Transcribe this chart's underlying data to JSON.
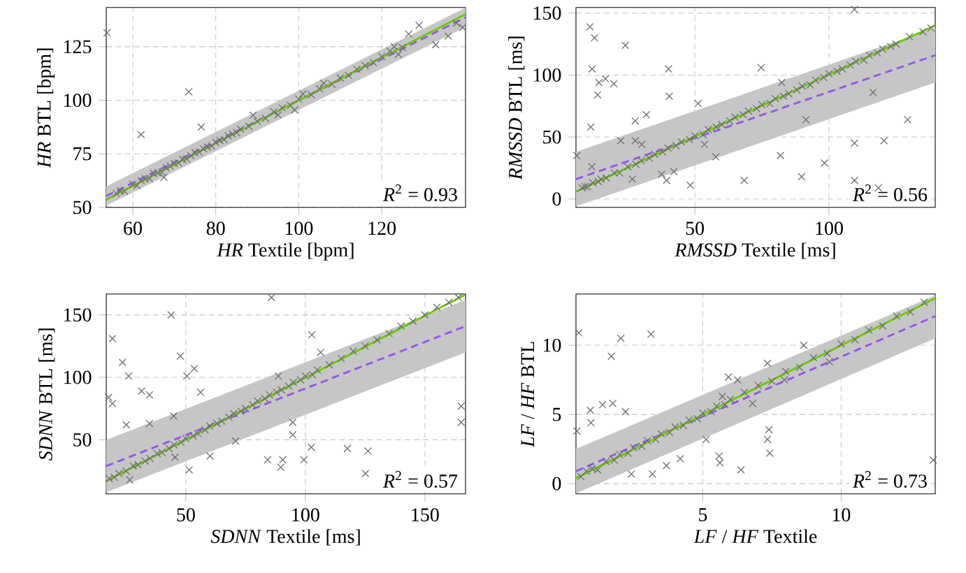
{
  "chart_data": [
    {
      "type": "scatter",
      "xlabel": "*HR* Textile [bpm]",
      "ylabel": "*HR* BTL [bpm]",
      "xlim": [
        53.6,
        140.2
      ],
      "ylim": [
        50,
        143.3
      ],
      "xticks": [
        60,
        80,
        100,
        120
      ],
      "yticks": [
        50,
        75,
        100,
        125
      ],
      "grid": true,
      "annotations": [
        "*R*$^{2}$ = 0.93"
      ],
      "series": [
        {
          "type": "line",
          "color": "#9955ee",
          "line_style": "dashed",
          "marker": "none",
          "x": [
            53.6,
            140.2
          ],
          "values": [
            55.3,
            138.7
          ],
          "lower": [
            50.8,
            134.2
          ],
          "upper": [
            59.8,
            143.2
          ]
        },
        {
          "type": "scatter",
          "color": "#707070",
          "marker": "cross",
          "x": [
            56,
            57,
            58,
            60,
            61,
            62,
            63,
            64,
            65,
            66,
            67,
            68,
            69,
            70,
            71,
            72,
            73,
            74,
            75,
            76,
            77,
            78,
            79,
            80,
            81,
            82,
            83,
            84,
            85,
            86,
            88,
            89,
            90,
            92,
            94,
            95,
            96,
            98,
            99,
            100,
            101,
            103,
            105,
            106,
            108,
            110,
            112,
            114,
            116,
            118,
            120,
            122,
            123,
            124,
            125,
            53.8,
            62,
            73.5,
            76.5,
            67.5,
            129,
            126.5,
            133,
            136,
            138,
            139.5
          ],
          "values": [
            56.5,
            57.8,
            57.5,
            60.8,
            60.2,
            62.5,
            63.4,
            63.5,
            65.9,
            66.2,
            66.5,
            68.6,
            69.3,
            70.5,
            70.8,
            72.4,
            72.6,
            74.2,
            75.6,
            75.8,
            77.4,
            78.1,
            78.7,
            80.3,
            81.2,
            81.7,
            83.4,
            84.2,
            84.9,
            86.5,
            87.8,
            93,
            90.2,
            91.6,
            94.6,
            93.2,
            96.5,
            97.6,
            95.5,
            100.5,
            103,
            102.6,
            105.4,
            108,
            107.5,
            110.4,
            111.6,
            114.5,
            116.2,
            117.6,
            120.4,
            123,
            125,
            121.5,
            124.6,
            131.5,
            84,
            104,
            87.5,
            64,
            135,
            131,
            126,
            130,
            136,
            134
          ]
        },
        {
          "type": "line",
          "color": "#66cc00",
          "line_style": "solid",
          "marker": "none",
          "x": [
            53.6,
            140.2
          ],
          "values": [
            53.6,
            140.2
          ]
        }
      ]
    },
    {
      "type": "scatter",
      "xlabel": "*RMSSD* Textile [ms]",
      "ylabel": "*RMSSD* BTL [ms]",
      "xlim": [
        5.7,
        139.6
      ],
      "ylim": [
        -6.8,
        154.5
      ],
      "xticks": [
        50,
        100
      ],
      "yticks": [
        0,
        50,
        100,
        150
      ],
      "grid": true,
      "annotations": [
        "*R*$^{2}$ = 0.56"
      ],
      "series": [
        {
          "type": "line",
          "color": "#9955ee",
          "line_style": "dashed",
          "marker": "none",
          "x": [
            5.7,
            139.6
          ],
          "values": [
            16,
            116
          ],
          "lower": [
            -6,
            94
          ],
          "upper": [
            38,
            138
          ]
        },
        {
          "type": "scatter",
          "color": "#707070",
          "marker": "cross",
          "x": [
            8,
            9,
            10,
            12,
            14,
            15,
            17,
            20,
            22,
            25,
            28,
            30,
            33,
            35,
            38,
            40,
            43,
            45,
            48,
            50,
            53,
            55,
            58,
            60,
            63,
            65,
            68,
            70,
            73,
            75,
            78,
            80,
            83,
            85,
            88,
            90,
            93,
            95,
            98,
            100,
            103,
            105,
            108,
            110,
            113,
            115,
            118,
            120,
            123,
            125,
            130,
            135,
            138,
            10.9,
            12.6,
            11.7,
            14.3,
            16.7,
            19.8,
            13.8,
            11.2,
            24.1,
            40.2,
            40.5,
            31.9,
            27.8,
            22.4,
            27.8,
            30.2,
            74.7,
            51.2,
            82.4,
            91.4,
            116.4,
            109.5,
            120.5,
            129.3,
            109.5,
            81.9,
            98.3,
            89.8,
            68.4,
            48.3,
            109.5,
            118.4,
            57.8,
            53.6,
            11.6,
            6,
            37.6,
            42.2,
            26.7,
            39.5
          ],
          "values": [
            9,
            10,
            10,
            13,
            14,
            16,
            17,
            21,
            21,
            26,
            28,
            31,
            33,
            36,
            38,
            41,
            43,
            46,
            48,
            51,
            52,
            56,
            58,
            60,
            63,
            66,
            68,
            71,
            73,
            76,
            77,
            81,
            83,
            85,
            88,
            91,
            92,
            96,
            98,
            101,
            103,
            105,
            108,
            111,
            112,
            116,
            118,
            121,
            123,
            125,
            131,
            135,
            138,
            139,
            130,
            105,
            94,
            97,
            93,
            84,
            58,
            124,
            105,
            83,
            68,
            63,
            47,
            47,
            44,
            106,
            77,
            94,
            64,
            86,
            45,
            47,
            64,
            153,
            35,
            29,
            18,
            15,
            11,
            15,
            9,
            34,
            44,
            26,
            35,
            20,
            22,
            16,
            15
          ]
        },
        {
          "type": "line",
          "color": "#66cc00",
          "line_style": "solid",
          "marker": "none",
          "x": [
            5.7,
            139.6
          ],
          "values": [
            6,
            140
          ]
        }
      ]
    },
    {
      "type": "scatter",
      "xlabel": "*SDNN* Textile [ms]",
      "ylabel": "*SDNN* BTL [ms]",
      "xlim": [
        16.7,
        167
      ],
      "ylim": [
        6.7,
        166.7
      ],
      "xticks": [
        50,
        100,
        150
      ],
      "yticks": [
        50,
        100,
        150
      ],
      "grid": true,
      "annotations": [
        "*R*$^{2}$ = 0.57"
      ],
      "series": [
        {
          "type": "line",
          "color": "#9955ee",
          "line_style": "dashed",
          "marker": "none",
          "x": [
            16.7,
            167
          ],
          "values": [
            29,
            141
          ],
          "lower": [
            8,
            120
          ],
          "upper": [
            50,
            162
          ]
        },
        {
          "type": "scatter",
          "color": "#707070",
          "marker": "cross",
          "x": [
            18,
            20,
            22,
            25,
            28,
            30,
            33,
            35,
            38,
            40,
            43,
            45,
            48,
            50,
            53,
            55,
            58,
            60,
            63,
            65,
            68,
            70,
            73,
            75,
            78,
            80,
            83,
            85,
            88,
            90,
            93,
            95,
            98,
            100,
            103,
            105,
            110,
            115,
            120,
            125,
            130,
            135,
            140,
            145,
            150,
            155,
            160,
            164,
            17.7,
            19.3,
            19.3,
            23.5,
            26.1,
            31.5,
            34.8,
            43.8,
            47.7,
            50.4,
            53.5,
            56.2,
            85.8,
            102.7,
            106.4,
            88.7,
            94.7,
            94.7,
            102.5,
            117.6,
            126.2,
            125.1,
            99.4,
            90.5,
            89.7,
            84.2,
            51.4,
            26.5,
            25.1,
            34.8,
            44.9,
            165.2,
            165.2,
            60.1,
            45.5,
            70.8
          ],
          "values": [
            19,
            20,
            23,
            25,
            29,
            30,
            33,
            35,
            39,
            40,
            43,
            46,
            48,
            51,
            53,
            55,
            58,
            61,
            63,
            65,
            68,
            71,
            73,
            75,
            78,
            81,
            83,
            86,
            88,
            90,
            93,
            96,
            98,
            101,
            102,
            106,
            110,
            115,
            121,
            125,
            130,
            135,
            141,
            145,
            150,
            156,
            160,
            164,
            84,
            79,
            131,
            112,
            101,
            89,
            86,
            150,
            117,
            101,
            107,
            88,
            164,
            134,
            120,
            101,
            64,
            54,
            44,
            43,
            41,
            23,
            34,
            34,
            28,
            34,
            26,
            18,
            62,
            63,
            69,
            77,
            64,
            37,
            36,
            49
          ]
        },
        {
          "type": "line",
          "color": "#66cc00",
          "line_style": "solid",
          "marker": "none",
          "x": [
            16.7,
            166.7
          ],
          "values": [
            17,
            166
          ]
        }
      ]
    },
    {
      "type": "scatter",
      "xlabel": "*LF* / *HF* Textile",
      "ylabel": "*LF* / *HF* BTL",
      "xlim": [
        0.42,
        13.4
      ],
      "ylim": [
        -0.74,
        13.7
      ],
      "xticks": [
        5,
        10
      ],
      "yticks": [
        0,
        5,
        10
      ],
      "grid": true,
      "annotations": [
        "*R*$^{2}$ = 0.73"
      ],
      "series": [
        {
          "type": "line",
          "color": "#9955ee",
          "line_style": "dashed",
          "marker": "none",
          "x": [
            0.42,
            13.4
          ],
          "values": [
            0.9,
            12.1
          ],
          "lower": [
            -0.7,
            10.5
          ],
          "upper": [
            2.5,
            13.6
          ]
        },
        {
          "type": "scatter",
          "color": "#707070",
          "marker": "cross",
          "x": [
            0.6,
            0.8,
            1,
            1.2,
            1.5,
            1.8,
            2,
            2.3,
            2.5,
            2.8,
            3,
            3.3,
            3.5,
            3.8,
            4,
            4.3,
            4.5,
            4.8,
            5,
            5.3,
            5.5,
            5.8,
            6,
            6.5,
            7,
            7.5,
            8,
            8.5,
            9,
            9.5,
            10,
            10.5,
            11,
            11.5,
            12,
            12.5,
            13,
            0.52,
            3.13,
            2.04,
            1.7,
            1.75,
            1.38,
            2.21,
            0.96,
            0.45,
            3.18,
            2.42,
            6.38,
            5.59,
            5.62,
            7.39,
            7.42,
            7.34,
            4.19,
            3.69,
            6.8,
            5.93,
            6.26,
            7.34,
            8.65,
            13.33,
            5.12,
            9.58,
            7.95,
            5.71,
            0.94
          ],
          "values": [
            0.5,
            0.9,
            1.1,
            1.0,
            1.6,
            1.7,
            2.1,
            2.2,
            2.6,
            2.7,
            3.1,
            3.2,
            3.6,
            3.7,
            4.1,
            4.2,
            4.6,
            4.7,
            5.1,
            5.2,
            5.6,
            5.7,
            6.1,
            6.6,
            7.1,
            7.4,
            8.1,
            8.4,
            9.1,
            9.4,
            10.1,
            10.4,
            11.1,
            11.4,
            12.1,
            12.4,
            13.1,
            10.9,
            10.8,
            10.5,
            9.2,
            5.8,
            5.7,
            5.2,
            4.4,
            3.8,
            0.7,
            0.7,
            1.0,
            2.0,
            1.5,
            3.9,
            2.2,
            3.2,
            1.8,
            1.3,
            5.8,
            7.7,
            7.5,
            8.7,
            10,
            1.7,
            3.2,
            8.8,
            7.5,
            6.3,
            5.3
          ]
        },
        {
          "type": "line",
          "color": "#66cc00",
          "line_style": "solid",
          "marker": "none",
          "x": [
            0.42,
            13.4
          ],
          "values": [
            0.4,
            13.4
          ]
        }
      ]
    }
  ]
}
